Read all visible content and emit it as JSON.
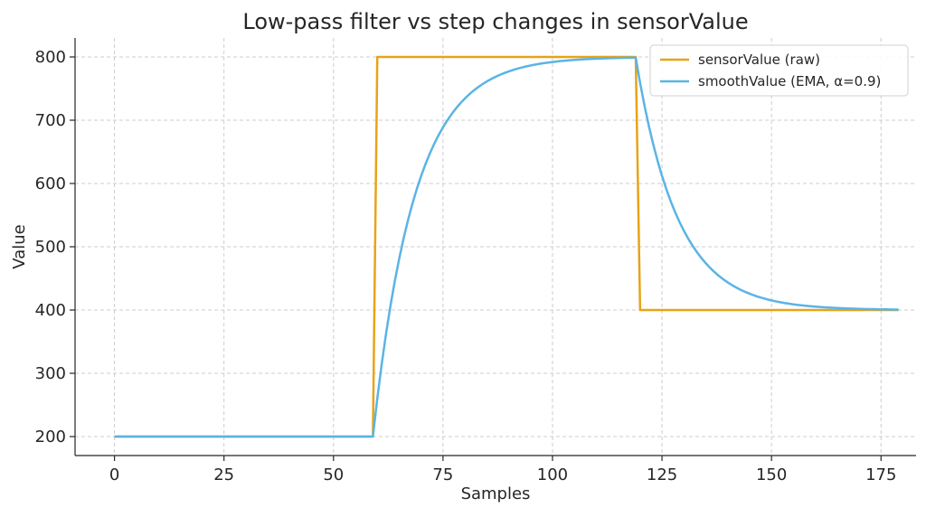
{
  "chart_data": {
    "type": "line",
    "title": "Low-pass filter vs step changes in sensorValue",
    "xlabel": "Samples",
    "ylabel": "Value",
    "xlim": [
      -9,
      183
    ],
    "ylim": [
      170,
      830
    ],
    "xticks": [
      0,
      25,
      50,
      75,
      100,
      125,
      150,
      175
    ],
    "yticks": [
      200,
      300,
      400,
      500,
      600,
      700,
      800
    ],
    "grid": true,
    "legend_position": "top-right",
    "x_start": 0,
    "x_end": 179,
    "alpha": 0.9,
    "steps": [
      {
        "from": 0,
        "to": 59,
        "value": 200
      },
      {
        "from": 60,
        "to": 119,
        "value": 800
      },
      {
        "from": 120,
        "to": 179,
        "value": 400
      }
    ],
    "series": [
      {
        "name": "sensorValue (raw)",
        "color": "#e8a317",
        "kind": "raw"
      },
      {
        "name": "smoothValue (EMA, α=0.9)",
        "color": "#5ab4e5",
        "kind": "ema"
      }
    ]
  }
}
